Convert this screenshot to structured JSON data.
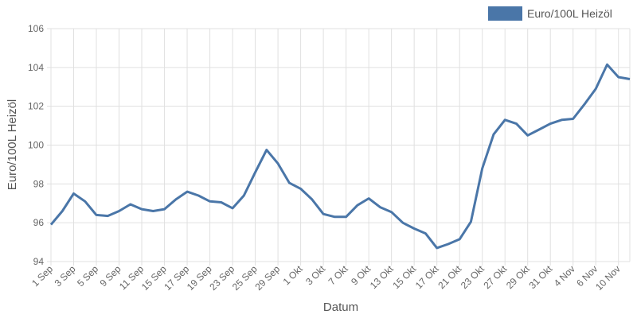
{
  "chart_data": {
    "type": "line",
    "title": "",
    "xlabel": "Datum",
    "ylabel": "Euro/100L Heizöl",
    "ylim": [
      94,
      106
    ],
    "yticks": [
      94,
      96,
      98,
      100,
      102,
      104,
      106
    ],
    "grid": true,
    "legend_position": "top-right",
    "categories": [
      "1 Sep",
      "",
      "3 Sep",
      "",
      "5 Sep",
      "",
      "9 Sep",
      "",
      "11 Sep",
      "",
      "15 Sep",
      "",
      "17 Sep",
      "",
      "19 Sep",
      "",
      "23 Sep",
      "",
      "25 Sep",
      "",
      "29 Sep",
      "",
      "1 Okt",
      "",
      "3 Okt",
      "",
      "7 Okt",
      "",
      "9 Okt",
      "",
      "13 Okt",
      "",
      "15 Okt",
      "",
      "17 Okt",
      "",
      "21 Okt",
      "",
      "23 Okt",
      "",
      "27 Okt",
      "",
      "29 Okt",
      "",
      "31 Okt",
      "",
      "4 Nov",
      "",
      "6 Nov",
      "",
      "10 Nov",
      ""
    ],
    "series": [
      {
        "name": "Euro/100L Heizöl",
        "color": "#4a76a8",
        "values": [
          95.9,
          96.6,
          97.5,
          97.1,
          96.4,
          96.35,
          96.6,
          96.95,
          96.7,
          96.6,
          96.7,
          97.2,
          97.6,
          97.4,
          97.1,
          97.05,
          96.75,
          97.4,
          98.6,
          99.75,
          99.05,
          98.05,
          97.75,
          97.2,
          96.45,
          96.3,
          96.3,
          96.9,
          97.25,
          96.8,
          96.55,
          96.0,
          95.7,
          95.45,
          94.7,
          94.9,
          95.15,
          96.05,
          98.8,
          100.55,
          101.3,
          101.1,
          100.5,
          100.8,
          101.1,
          101.3,
          101.35,
          102.1,
          102.9,
          104.15,
          103.5,
          103.4
        ]
      }
    ]
  }
}
